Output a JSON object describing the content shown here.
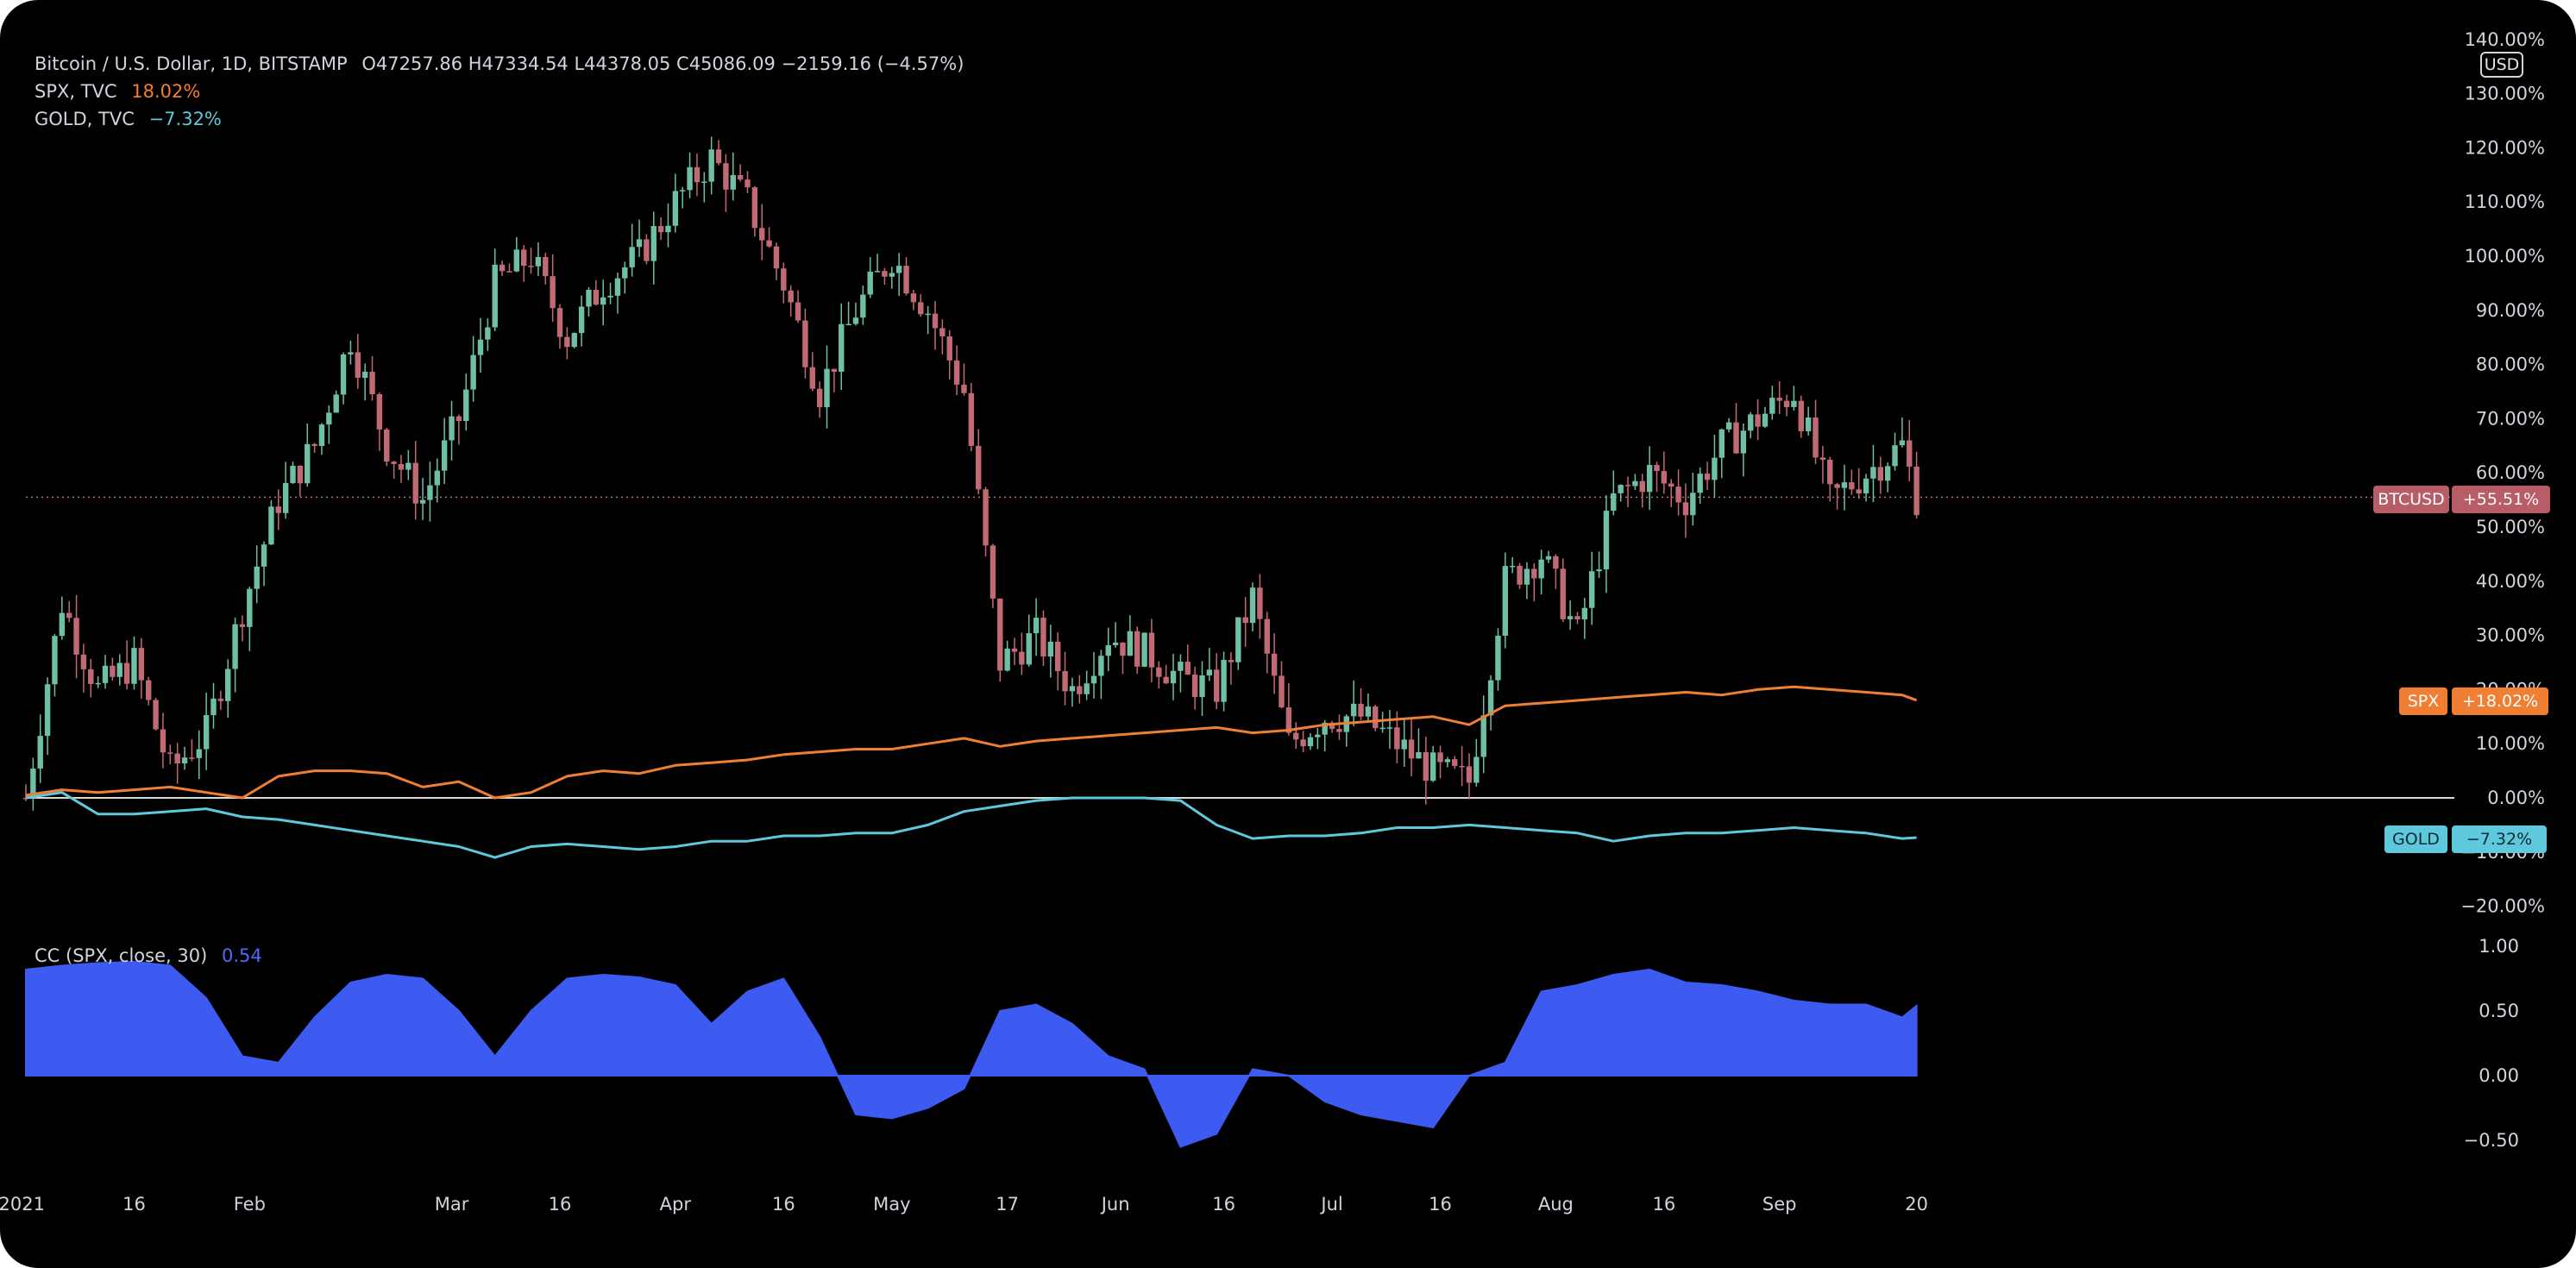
{
  "legend": {
    "btc": {
      "title": "Bitcoin / U.S. Dollar, 1D, BITSTAMP",
      "ohlc": "O47257.86  H47334.54  L44378.05  C45086.09  −2159.16 (−4.57%)"
    },
    "spx": {
      "title": "SPX, TVC",
      "value": "18.02%"
    },
    "gold": {
      "title": "GOLD, TVC",
      "value": "−7.32%"
    },
    "cc": {
      "title": "CC (SPX, close, 30)",
      "value": "0.54"
    }
  },
  "currency_badge": "USD",
  "labels": {
    "btc_name": "BTCUSD",
    "btc_value": "+55.51%",
    "spx_name": "SPX",
    "spx_value": "+18.02%",
    "gold_name": "GOLD",
    "gold_value": "−7.32%"
  },
  "colors": {
    "background": "#000000",
    "candle_up": "#6fbfa5",
    "candle_down": "#c26a74",
    "spx": "#f07e33",
    "gold": "#5ec9dc",
    "cc_fill": "#3d5af1",
    "cc_value": "#4a6cf7",
    "axis_text": "#d1d4dc"
  },
  "chart_data": [
    {
      "type": "line",
      "title": "Bitcoin / U.S. Dollar, 1D, BITSTAMP — percent change comparison",
      "y_unit": "percent",
      "ylim": [
        -20,
        140
      ],
      "y_ticks": [
        -20,
        -10,
        0,
        10,
        20,
        30,
        40,
        50,
        60,
        70,
        80,
        90,
        100,
        110,
        120,
        130,
        140
      ],
      "y_tick_labels": [
        "−20.00%",
        "−10.00%",
        "0.00%",
        "10.00%",
        "20.00%",
        "30.00%",
        "40.00%",
        "50.00%",
        "60.00%",
        "70.00%",
        "80.00%",
        "90.00%",
        "100.00%",
        "110.00%",
        "120.00%",
        "130.00%",
        "140.00%"
      ],
      "x_ticks": [
        {
          "label": "2021",
          "date": "2021-01-01"
        },
        {
          "label": "16",
          "date": "2021-01-16"
        },
        {
          "label": "Feb",
          "date": "2021-02-01"
        },
        {
          "label": "Mar",
          "date": "2021-03-01"
        },
        {
          "label": "16",
          "date": "2021-03-16"
        },
        {
          "label": "Apr",
          "date": "2021-04-01"
        },
        {
          "label": "16",
          "date": "2021-04-16"
        },
        {
          "label": "May",
          "date": "2021-05-01"
        },
        {
          "label": "17",
          "date": "2021-05-17"
        },
        {
          "label": "Jun",
          "date": "2021-06-01"
        },
        {
          "label": "16",
          "date": "2021-06-16"
        },
        {
          "label": "Jul",
          "date": "2021-07-01"
        },
        {
          "label": "16",
          "date": "2021-07-16"
        },
        {
          "label": "Aug",
          "date": "2021-08-01"
        },
        {
          "label": "16",
          "date": "2021-08-16"
        },
        {
          "label": "Sep",
          "date": "2021-09-01"
        },
        {
          "label": "20",
          "date": "2021-09-20"
        }
      ],
      "series": [
        {
          "name": "BTCUSD",
          "style": "candlestick",
          "x": [
            "2021-01-01",
            "2021-01-06",
            "2021-01-11",
            "2021-01-16",
            "2021-01-21",
            "2021-01-26",
            "2021-01-31",
            "2021-02-05",
            "2021-02-10",
            "2021-02-15",
            "2021-02-20",
            "2021-02-25",
            "2021-03-02",
            "2021-03-07",
            "2021-03-12",
            "2021-03-17",
            "2021-03-22",
            "2021-03-27",
            "2021-04-01",
            "2021-04-06",
            "2021-04-11",
            "2021-04-16",
            "2021-04-21",
            "2021-04-26",
            "2021-05-01",
            "2021-05-06",
            "2021-05-11",
            "2021-05-16",
            "2021-05-21",
            "2021-05-26",
            "2021-05-31",
            "2021-06-05",
            "2021-06-10",
            "2021-06-15",
            "2021-06-20",
            "2021-06-25",
            "2021-06-30",
            "2021-07-05",
            "2021-07-10",
            "2021-07-15",
            "2021-07-20",
            "2021-07-25",
            "2021-07-30",
            "2021-08-04",
            "2021-08-09",
            "2021-08-14",
            "2021-08-19",
            "2021-08-24",
            "2021-08-29",
            "2021-09-03",
            "2021-09-08",
            "2021-09-13",
            "2021-09-18",
            "2021-09-20"
          ],
          "close": [
            0,
            36,
            20,
            25,
            5,
            12,
            35,
            55,
            65,
            85,
            65,
            55,
            70,
            95,
            100,
            85,
            95,
            100,
            110,
            118,
            110,
            95,
            75,
            90,
            100,
            90,
            75,
            25,
            30,
            20,
            30,
            27,
            22,
            20,
            37,
            10,
            15,
            15,
            10,
            5,
            3,
            40,
            45,
            30,
            55,
            60,
            55,
            65,
            70,
            75,
            55,
            60,
            65,
            55.51
          ]
        },
        {
          "name": "SPX",
          "style": "line",
          "x": [
            "2021-01-01",
            "2021-01-06",
            "2021-01-11",
            "2021-01-16",
            "2021-01-21",
            "2021-01-26",
            "2021-01-31",
            "2021-02-05",
            "2021-02-10",
            "2021-02-15",
            "2021-02-20",
            "2021-02-25",
            "2021-03-02",
            "2021-03-07",
            "2021-03-12",
            "2021-03-17",
            "2021-03-22",
            "2021-03-27",
            "2021-04-01",
            "2021-04-06",
            "2021-04-11",
            "2021-04-16",
            "2021-04-21",
            "2021-04-26",
            "2021-05-01",
            "2021-05-06",
            "2021-05-11",
            "2021-05-16",
            "2021-05-21",
            "2021-05-26",
            "2021-05-31",
            "2021-06-05",
            "2021-06-10",
            "2021-06-15",
            "2021-06-20",
            "2021-06-25",
            "2021-06-30",
            "2021-07-05",
            "2021-07-10",
            "2021-07-15",
            "2021-07-20",
            "2021-07-25",
            "2021-07-30",
            "2021-08-04",
            "2021-08-09",
            "2021-08-14",
            "2021-08-19",
            "2021-08-24",
            "2021-08-29",
            "2021-09-03",
            "2021-09-08",
            "2021-09-13",
            "2021-09-18",
            "2021-09-20"
          ],
          "values": [
            0.5,
            1.5,
            1,
            1.5,
            2,
            1,
            0,
            4,
            5,
            5,
            4.5,
            2,
            3,
            0,
            1,
            4,
            5,
            4.5,
            6,
            6.5,
            7,
            8,
            8.5,
            9,
            9,
            10,
            11,
            9.5,
            10.5,
            11,
            11.5,
            12,
            12.5,
            13,
            12,
            12.5,
            13.5,
            14,
            14.5,
            15,
            13.5,
            17,
            17.5,
            18,
            18.5,
            19,
            19.5,
            19,
            20,
            20.5,
            20,
            19.5,
            19,
            18.02
          ]
        },
        {
          "name": "GOLD",
          "style": "line",
          "x": [
            "2021-01-01",
            "2021-01-06",
            "2021-01-11",
            "2021-01-16",
            "2021-01-21",
            "2021-01-26",
            "2021-01-31",
            "2021-02-05",
            "2021-02-10",
            "2021-02-15",
            "2021-02-20",
            "2021-02-25",
            "2021-03-02",
            "2021-03-07",
            "2021-03-12",
            "2021-03-17",
            "2021-03-22",
            "2021-03-27",
            "2021-04-01",
            "2021-04-06",
            "2021-04-11",
            "2021-04-16",
            "2021-04-21",
            "2021-04-26",
            "2021-05-01",
            "2021-05-06",
            "2021-05-11",
            "2021-05-16",
            "2021-05-21",
            "2021-05-26",
            "2021-05-31",
            "2021-06-05",
            "2021-06-10",
            "2021-06-15",
            "2021-06-20",
            "2021-06-25",
            "2021-06-30",
            "2021-07-05",
            "2021-07-10",
            "2021-07-15",
            "2021-07-20",
            "2021-07-25",
            "2021-07-30",
            "2021-08-04",
            "2021-08-09",
            "2021-08-14",
            "2021-08-19",
            "2021-08-24",
            "2021-08-29",
            "2021-09-03",
            "2021-09-08",
            "2021-09-13",
            "2021-09-18",
            "2021-09-20"
          ],
          "values": [
            0,
            1,
            -3,
            -3,
            -2.5,
            -2,
            -3.5,
            -4,
            -5,
            -6,
            -7,
            -8,
            -9,
            -11,
            -9,
            -8.5,
            -9,
            -9.5,
            -9,
            -8,
            -8,
            -7,
            -7,
            -6.5,
            -6.5,
            -5,
            -2.5,
            -1.5,
            -0.5,
            0,
            0,
            0,
            -0.5,
            -5,
            -7.5,
            -7,
            -7,
            -6.5,
            -5.5,
            -5.5,
            -5,
            -5.5,
            -6,
            -6.5,
            -8,
            -7,
            -6.5,
            -6.5,
            -6,
            -5.5,
            -6,
            -6.5,
            -7.5,
            -7.32
          ]
        }
      ]
    },
    {
      "type": "area",
      "title": "CC (SPX, close, 30)",
      "ylim": [
        -0.7,
        1.0
      ],
      "y_ticks": [
        -0.5,
        0.0,
        0.5,
        1.0
      ],
      "y_tick_labels": [
        "−0.50",
        "0.00",
        "0.50",
        "1.00"
      ],
      "series": [
        {
          "name": "CC (SPX, close, 30)",
          "x": [
            "2021-01-01",
            "2021-01-06",
            "2021-01-11",
            "2021-01-16",
            "2021-01-21",
            "2021-01-26",
            "2021-01-31",
            "2021-02-05",
            "2021-02-10",
            "2021-02-15",
            "2021-02-20",
            "2021-02-25",
            "2021-03-02",
            "2021-03-07",
            "2021-03-12",
            "2021-03-17",
            "2021-03-22",
            "2021-03-27",
            "2021-04-01",
            "2021-04-06",
            "2021-04-11",
            "2021-04-16",
            "2021-04-21",
            "2021-04-26",
            "2021-05-01",
            "2021-05-06",
            "2021-05-11",
            "2021-05-16",
            "2021-05-21",
            "2021-05-26",
            "2021-05-31",
            "2021-06-05",
            "2021-06-10",
            "2021-06-15",
            "2021-06-20",
            "2021-06-25",
            "2021-06-30",
            "2021-07-05",
            "2021-07-10",
            "2021-07-15",
            "2021-07-20",
            "2021-07-25",
            "2021-07-30",
            "2021-08-04",
            "2021-08-09",
            "2021-08-14",
            "2021-08-19",
            "2021-08-24",
            "2021-08-29",
            "2021-09-03",
            "2021-09-08",
            "2021-09-13",
            "2021-09-18",
            "2021-09-20"
          ],
          "values": [
            0.82,
            0.85,
            0.87,
            0.88,
            0.85,
            0.6,
            0.15,
            0.1,
            0.45,
            0.72,
            0.78,
            0.75,
            0.5,
            0.15,
            0.5,
            0.75,
            0.78,
            0.76,
            0.7,
            0.4,
            0.65,
            0.75,
            0.3,
            -0.3,
            -0.33,
            -0.25,
            -0.1,
            0.5,
            0.55,
            0.4,
            0.15,
            0.05,
            -0.55,
            -0.45,
            0.05,
            0.0,
            -0.2,
            -0.3,
            -0.35,
            -0.4,
            0.0,
            0.1,
            0.65,
            0.7,
            0.78,
            0.82,
            0.72,
            0.7,
            0.65,
            0.58,
            0.55,
            0.55,
            0.45,
            0.54
          ]
        }
      ]
    }
  ]
}
